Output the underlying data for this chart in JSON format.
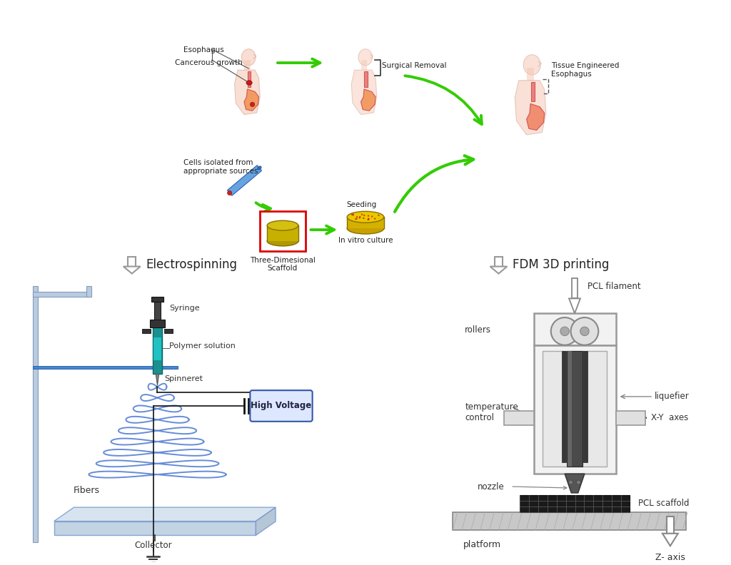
{
  "background_color": "#ffffff",
  "top_labels": {
    "esophagus": "Esophagus",
    "cancerous": "Cancerous growth",
    "surgical": "Surgical Removal",
    "tissue_eng": "Tissue Engineered\nEsophagus",
    "cells_isolated": "Cells isolated from\nappropriate sources",
    "seeding": "Seeding",
    "in_vitro": "In vitro culture",
    "scaffold": "Three-Dimesional\nScaffold"
  },
  "left_section": {
    "title": "Electrospinning",
    "labels": {
      "syringe": "Syringe",
      "polymer": "Polymer solution",
      "spinneret": "Spinneret",
      "fibers": "Fibers",
      "collector": "Collector",
      "high_voltage": "High Voltage"
    }
  },
  "right_section": {
    "title": "FDM 3D printing",
    "labels": {
      "pcl_filament": "PCL filament",
      "rollers": "rollers",
      "liquefier": "liquefier",
      "temp_control": "temperature\ncontrol",
      "nozzle": "nozzle",
      "pcl_scaffold": "PCL scaffold",
      "xy_axes": "X-Y  axes",
      "platform": "platform",
      "z_axis": "Z- axis"
    }
  },
  "arrow_green": "#33cc00",
  "arrow_gray": "#aaaaaa",
  "red_box_color": "#dd0000",
  "body_fill": "#f5c5b0",
  "body_edge": "#d4a090",
  "organ_fill": "#e87070",
  "organ_edge": "#cc4444",
  "cancer_fill": "#cc1111",
  "stomach_fill": "#f08060",
  "coil_color": "#3366cc",
  "syringe_body": "#22aaaa",
  "syringe_dark": "#115555",
  "hv_fill": "#dde8ff",
  "hv_edge": "#3355aa",
  "plate_fill": "#cce0f0",
  "plate_edge": "#7799cc",
  "scaffold_gold_top": "#d4c010",
  "scaffold_gold_side": "#c8b000",
  "scaffold_gold_bot": "#b09800"
}
